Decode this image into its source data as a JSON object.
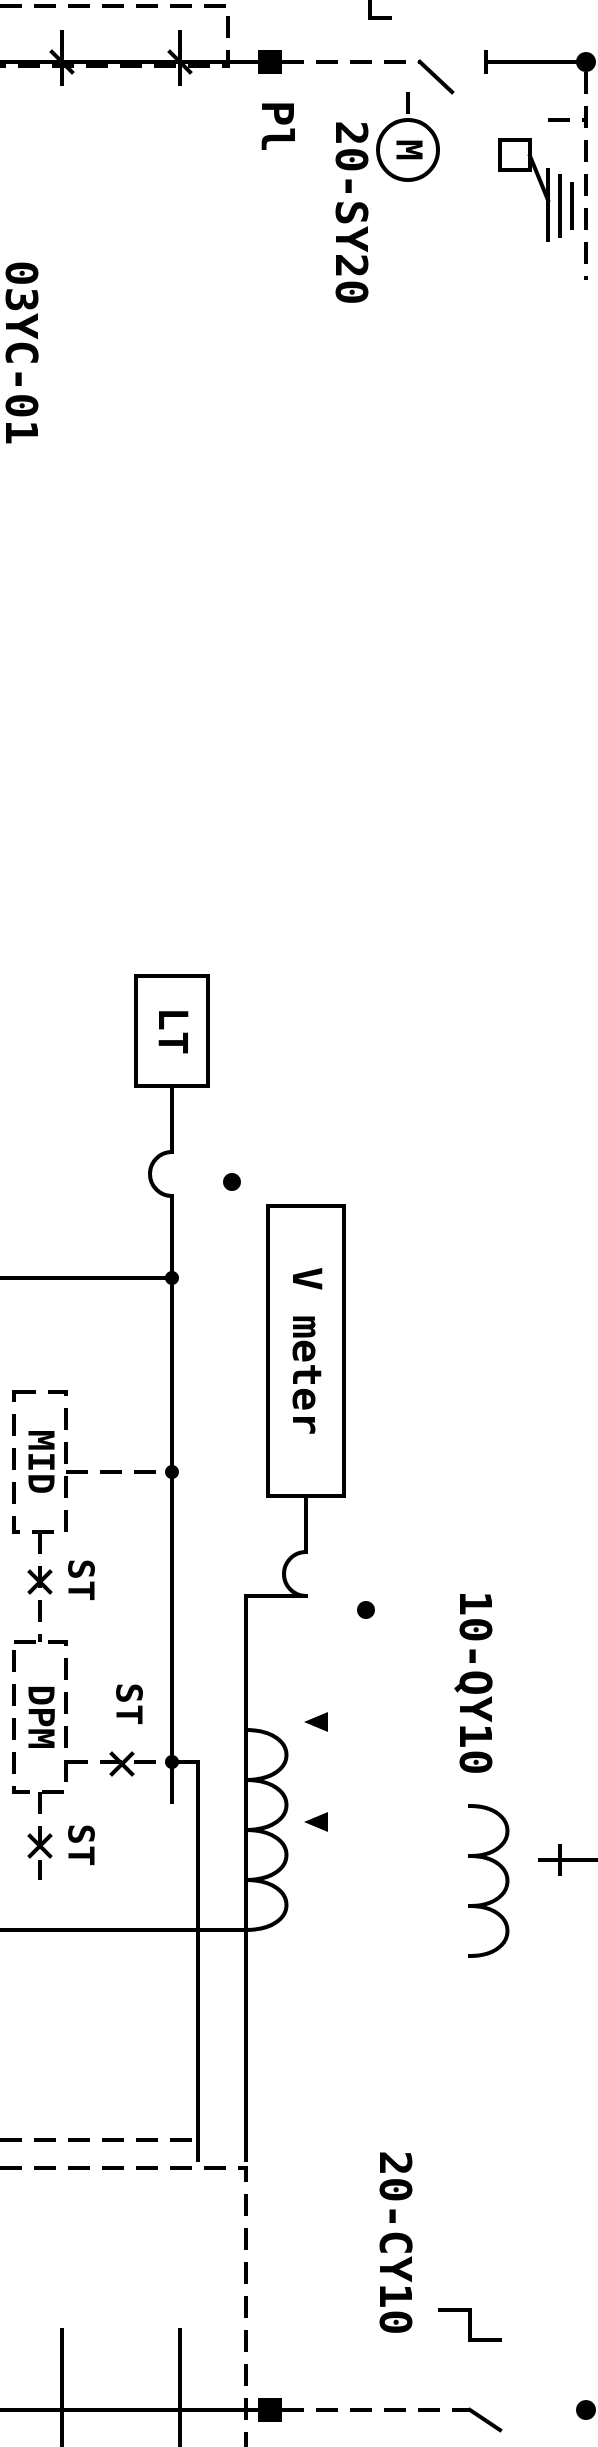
{
  "labels": {
    "cyc10_top": "03YC-01",
    "pl": "Pl",
    "sy20": "20-SY20",
    "motor": "M",
    "lt": "LT",
    "meter": "V meter",
    "mid": "MID",
    "dpm": "DPM",
    "st_a": "ST",
    "st_b": "ST",
    "st_c": "ST",
    "qy10": "10-QY10",
    "cy20": "20-CY10"
  },
  "colors": {
    "ink": "#000000",
    "paper": "#ffffff"
  }
}
